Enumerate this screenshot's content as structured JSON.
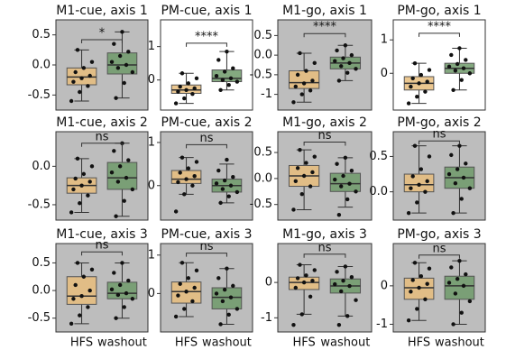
{
  "chart_data": [
    {
      "type": "box",
      "title": "M1-cue, axis 1",
      "background": "#bdbdbd",
      "ylim": [
        -0.75,
        0.75
      ],
      "yticks": [
        0.5,
        {
          "value": 0,
          "label": "0.0"
        },
        -0.5
      ],
      "annotation": "*",
      "annotation_y": 0.42,
      "series": [
        {
          "color": "#e8bd7c",
          "whislo": -0.6,
          "q1": -0.33,
          "med": -0.2,
          "q3": -0.05,
          "whishi": 0.25,
          "values": [
            -0.6,
            -0.45,
            -0.35,
            -0.28,
            -0.22,
            -0.18,
            -0.12,
            -0.05,
            0.05,
            0.25
          ]
        },
        {
          "color": "#6f9a6a",
          "whislo": -0.55,
          "q1": -0.15,
          "med": 0.0,
          "q3": 0.2,
          "whishi": 0.55,
          "values": [
            -0.55,
            -0.3,
            -0.12,
            -0.05,
            0.0,
            0.05,
            0.15,
            0.22,
            0.35,
            0.55
          ]
        }
      ]
    },
    {
      "type": "box",
      "title": "PM-cue, axis 1",
      "background": "#ffffff",
      "ylim": [
        -0.9,
        1.8
      ],
      "yticks": [
        1,
        0
      ],
      "annotation": "****",
      "annotation_y": 1.1,
      "series": [
        {
          "color": "#e8bd7c",
          "whislo": -0.7,
          "q1": -0.4,
          "med": -0.3,
          "q3": -0.15,
          "whishi": 0.2,
          "values": [
            -0.7,
            -0.55,
            -0.42,
            -0.35,
            -0.3,
            -0.25,
            -0.2,
            -0.1,
            0.05,
            0.2
          ]
        },
        {
          "color": "#6f9a6a",
          "whislo": -0.3,
          "q1": -0.05,
          "med": 0.05,
          "q3": 0.3,
          "whishi": 0.85,
          "values": [
            -0.3,
            -0.15,
            -0.05,
            0.0,
            0.05,
            0.12,
            0.25,
            0.35,
            0.6,
            0.85
          ]
        }
      ]
    },
    {
      "type": "box",
      "title": "M1-go, axis 1",
      "background": "#bdbdbd",
      "ylim": [
        -1.4,
        0.9
      ],
      "yticks": [
        0.5,
        {
          "value": 0,
          "label": "0.0"
        },
        -0.5,
        -1.0
      ],
      "annotation": "****",
      "annotation_y": 0.55,
      "series": [
        {
          "color": "#e8bd7c",
          "whislo": -1.2,
          "q1": -0.85,
          "med": -0.7,
          "q3": -0.4,
          "whishi": 0.05,
          "values": [
            -1.2,
            -1.0,
            -0.9,
            -0.8,
            -0.72,
            -0.65,
            -0.5,
            -0.4,
            -0.2,
            0.05
          ]
        },
        {
          "color": "#6f9a6a",
          "whislo": -0.65,
          "q1": -0.35,
          "med": -0.2,
          "q3": -0.05,
          "whishi": 0.25,
          "values": [
            -0.65,
            -0.45,
            -0.35,
            -0.28,
            -0.2,
            -0.15,
            -0.08,
            0.0,
            0.12,
            0.25
          ]
        }
      ]
    },
    {
      "type": "box",
      "title": "PM-go, axis 1",
      "background": "#ffffff",
      "ylim": [
        -1.1,
        1.6
      ],
      "yticks": [
        1,
        0
      ],
      "annotation": "****",
      "annotation_y": 1.2,
      "series": [
        {
          "color": "#e8bd7c",
          "whislo": -0.9,
          "q1": -0.5,
          "med": -0.3,
          "q3": -0.1,
          "whishi": 0.3,
          "values": [
            -0.9,
            -0.7,
            -0.55,
            -0.4,
            -0.3,
            -0.25,
            -0.15,
            -0.05,
            0.1,
            0.3
          ]
        },
        {
          "color": "#6f9a6a",
          "whislo": -0.5,
          "q1": 0.0,
          "med": 0.15,
          "q3": 0.3,
          "whishi": 0.75,
          "values": [
            -0.5,
            -0.2,
            0.0,
            0.08,
            0.15,
            0.2,
            0.28,
            0.4,
            0.55,
            0.75
          ]
        }
      ]
    },
    {
      "type": "box",
      "title": "M1-cue, axis 2",
      "background": "#bdbdbd",
      "ylim": [
        -0.7,
        0.45
      ],
      "yticks": [
        {
          "value": 0,
          "label": "0.0"
        },
        -0.5
      ],
      "annotation": "ns",
      "annotation_y": 0.3,
      "series": [
        {
          "color": "#e8bd7c",
          "whislo": -0.6,
          "q1": -0.35,
          "med": -0.25,
          "q3": -0.15,
          "whishi": 0.1,
          "values": [
            -0.6,
            -0.48,
            -0.38,
            -0.3,
            -0.25,
            -0.2,
            -0.16,
            -0.1,
            0.0,
            0.1
          ]
        },
        {
          "color": "#6f9a6a",
          "whislo": -0.65,
          "q1": -0.3,
          "med": -0.15,
          "q3": 0.05,
          "whishi": 0.3,
          "values": [
            -0.65,
            -0.45,
            -0.3,
            -0.2,
            -0.15,
            -0.08,
            0.0,
            0.08,
            0.2,
            0.3
          ]
        }
      ]
    },
    {
      "type": "box",
      "title": "PM-cue, axis 2",
      "background": "#bdbdbd",
      "ylim": [
        -0.8,
        1.25
      ],
      "yticks": [
        1,
        0
      ],
      "annotation": "ns",
      "annotation_y": 0.95,
      "series": [
        {
          "color": "#e8bd7c",
          "whislo": -0.2,
          "q1": 0.05,
          "med": 0.15,
          "q3": 0.35,
          "whishi": 0.65,
          "values": [
            -0.6,
            -0.2,
            0.0,
            0.08,
            0.15,
            0.22,
            0.3,
            0.4,
            0.55,
            0.65
          ]
        },
        {
          "color": "#6f9a6a",
          "whislo": -0.4,
          "q1": -0.15,
          "med": 0.0,
          "q3": 0.15,
          "whishi": 0.5,
          "values": [
            -0.4,
            -0.25,
            -0.15,
            -0.08,
            0.0,
            0.05,
            0.12,
            0.2,
            0.35,
            0.6
          ]
        }
      ]
    },
    {
      "type": "box",
      "title": "M1-go, axis 2",
      "background": "#bdbdbd",
      "ylim": [
        -0.8,
        0.9
      ],
      "yticks": [
        0.5,
        {
          "value": 0,
          "label": "0.0"
        },
        -0.5
      ],
      "annotation": "ns",
      "annotation_y": 0.7,
      "series": [
        {
          "color": "#e8bd7c",
          "whislo": -0.6,
          "q1": -0.15,
          "med": 0.05,
          "q3": 0.25,
          "whishi": 0.55,
          "values": [
            -0.6,
            -0.3,
            -0.15,
            -0.05,
            0.05,
            0.12,
            0.2,
            0.3,
            0.42,
            0.55
          ]
        },
        {
          "color": "#6f9a6a",
          "whislo": -0.55,
          "q1": -0.25,
          "med": -0.1,
          "q3": 0.1,
          "whishi": 0.4,
          "values": [
            -0.7,
            -0.4,
            -0.25,
            -0.15,
            -0.1,
            -0.02,
            0.05,
            0.15,
            0.28,
            0.4
          ]
        }
      ]
    },
    {
      "type": "box",
      "title": "PM-go, axis 2",
      "background": "#bdbdbd",
      "ylim": [
        -0.4,
        0.85
      ],
      "yticks": [
        0.5,
        {
          "value": 0,
          "label": "0.0"
        }
      ],
      "annotation": "ns",
      "annotation_y": 0.72,
      "series": [
        {
          "color": "#e8bd7c",
          "whislo": -0.3,
          "q1": 0.0,
          "med": 0.1,
          "q3": 0.25,
          "whishi": 0.65,
          "values": [
            -0.3,
            -0.15,
            0.0,
            0.05,
            0.1,
            0.15,
            0.22,
            0.32,
            0.5,
            0.65
          ]
        },
        {
          "color": "#6f9a6a",
          "whislo": -0.3,
          "q1": 0.05,
          "med": 0.2,
          "q3": 0.35,
          "whishi": 0.65,
          "values": [
            -0.3,
            -0.1,
            0.05,
            0.12,
            0.2,
            0.25,
            0.32,
            0.4,
            0.52,
            0.65
          ]
        }
      ]
    },
    {
      "type": "box",
      "title": "M1-cue, axis 3",
      "background": "#bdbdbd",
      "ylim": [
        -0.75,
        0.85
      ],
      "yticks": [
        0.5,
        {
          "value": 0,
          "label": "0.0"
        },
        -0.5
      ],
      "annotation": "ns",
      "annotation_y": 0.7,
      "categories": [
        "HFS",
        "washout"
      ],
      "series": [
        {
          "color": "#e8bd7c",
          "whislo": -0.6,
          "q1": -0.25,
          "med": -0.1,
          "q3": 0.25,
          "whishi": 0.5,
          "values": [
            -0.6,
            -0.45,
            -0.3,
            -0.15,
            -0.1,
            0.0,
            0.1,
            0.25,
            0.38,
            0.5
          ]
        },
        {
          "color": "#6f9a6a",
          "whislo": -0.5,
          "q1": -0.15,
          "med": -0.05,
          "q3": 0.15,
          "whishi": 0.5,
          "values": [
            -0.5,
            -0.3,
            -0.15,
            -0.08,
            -0.05,
            0.02,
            0.1,
            0.18,
            0.32,
            0.5
          ]
        }
      ]
    },
    {
      "type": "box",
      "title": "PM-cue, axis 3",
      "background": "#bdbdbd",
      "ylim": [
        -1.0,
        1.3
      ],
      "yticks": [
        1,
        0
      ],
      "annotation": "ns",
      "annotation_y": 1.05,
      "categories": [
        "HFS",
        "washout"
      ],
      "series": [
        {
          "color": "#e8bd7c",
          "whislo": -0.6,
          "q1": -0.25,
          "med": 0.05,
          "q3": 0.3,
          "whishi": 0.8,
          "values": [
            -0.6,
            -0.4,
            -0.2,
            -0.05,
            0.05,
            0.15,
            0.25,
            0.4,
            0.6,
            0.8
          ]
        },
        {
          "color": "#6f9a6a",
          "whislo": -0.8,
          "q1": -0.4,
          "med": -0.1,
          "q3": 0.15,
          "whishi": 0.65,
          "values": [
            -0.8,
            -0.55,
            -0.4,
            -0.2,
            -0.1,
            0.0,
            0.1,
            0.2,
            0.4,
            0.65
          ]
        }
      ]
    },
    {
      "type": "box",
      "title": "M1-go, axis 3",
      "background": "#bdbdbd",
      "ylim": [
        -1.4,
        1.1
      ],
      "yticks": [
        0,
        -1
      ],
      "annotation": "ns",
      "annotation_y": 0.8,
      "categories": [
        "HFS",
        "washout"
      ],
      "series": [
        {
          "color": "#e8bd7c",
          "whislo": -0.9,
          "q1": -0.2,
          "med": 0.0,
          "q3": 0.15,
          "whishi": 0.5,
          "values": [
            -1.2,
            -0.9,
            -0.4,
            -0.15,
            0.0,
            0.05,
            0.12,
            0.2,
            0.35,
            0.5
          ]
        },
        {
          "color": "#6f9a6a",
          "whislo": -0.95,
          "q1": -0.3,
          "med": -0.1,
          "q3": 0.1,
          "whishi": 0.45,
          "values": [
            -1.2,
            -0.95,
            -0.5,
            -0.25,
            -0.1,
            -0.05,
            0.05,
            0.15,
            0.3,
            0.45
          ]
        }
      ]
    },
    {
      "type": "box",
      "title": "PM-go, axis 3",
      "background": "#bdbdbd",
      "ylim": [
        -1.2,
        1.1
      ],
      "yticks": [
        0,
        -1
      ],
      "annotation": "ns",
      "annotation_y": 0.8,
      "categories": [
        "HFS",
        "washout"
      ],
      "series": [
        {
          "color": "#e8bd7c",
          "whislo": -0.9,
          "q1": -0.35,
          "med": -0.05,
          "q3": 0.2,
          "whishi": 0.6,
          "values": [
            -0.9,
            -0.6,
            -0.35,
            -0.15,
            -0.05,
            0.05,
            0.15,
            0.25,
            0.45,
            0.6
          ]
        },
        {
          "color": "#6f9a6a",
          "whislo": -1.0,
          "q1": -0.35,
          "med": 0.0,
          "q3": 0.25,
          "whishi": 0.65,
          "values": [
            -1.0,
            -0.7,
            -0.4,
            -0.2,
            0.0,
            0.08,
            0.18,
            0.3,
            0.48,
            0.65
          ]
        }
      ]
    }
  ]
}
